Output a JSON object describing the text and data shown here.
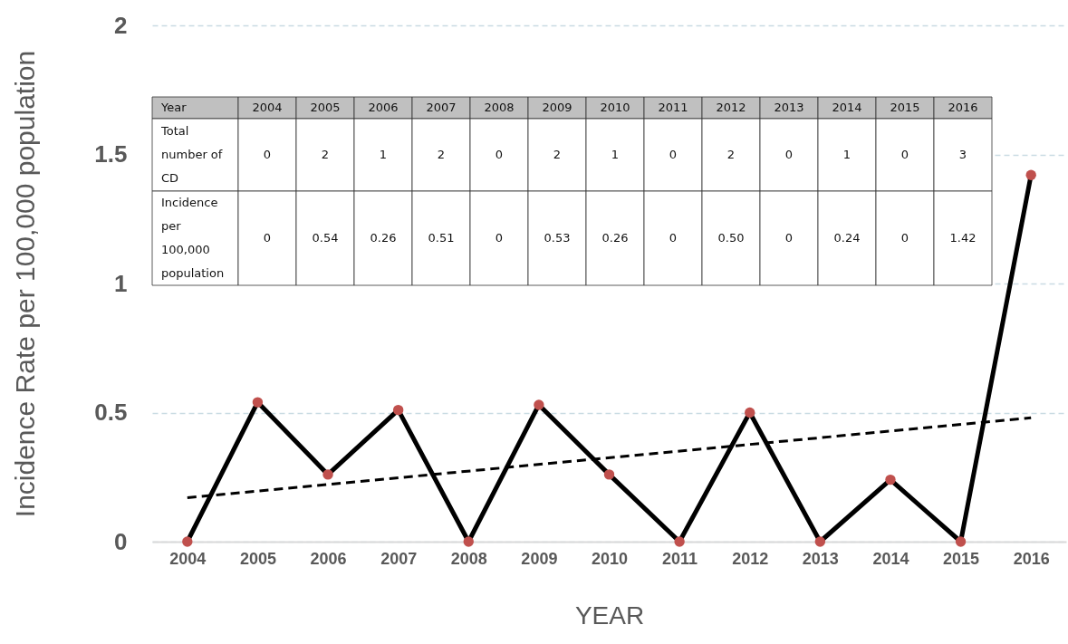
{
  "chart_data": {
    "type": "line",
    "x": [
      2004,
      2005,
      2006,
      2007,
      2008,
      2009,
      2010,
      2011,
      2012,
      2013,
      2014,
      2015,
      2016
    ],
    "xlim": [
      2003.5,
      2016.5
    ],
    "xticks": [
      2004,
      2005,
      2006,
      2007,
      2008,
      2009,
      2010,
      2011,
      2012,
      2013,
      2014,
      2015,
      2016
    ],
    "ylim": [
      0,
      2
    ],
    "yticks": [
      0,
      0.5,
      1,
      1.5,
      2
    ],
    "xlabel": "YEAR",
    "ylabel": "Incidence Rate per 100,000 population",
    "grid": "y",
    "annotations": [
      "Year",
      "2004",
      "2005",
      "2006",
      "2007",
      "2008",
      "2009",
      "2010",
      "2011",
      "2012",
      "2013",
      "2014",
      "2015",
      "2016",
      "Total number of CD",
      "0",
      "2",
      "1",
      "2",
      "0",
      "2",
      "1",
      "0",
      "2",
      "0",
      "1",
      "0",
      "3",
      "Incidence per 100,000 population",
      "0",
      "0.54",
      "0.26",
      "0.51",
      "0",
      "0.53",
      "0.26",
      "0",
      "0.50",
      "0",
      "0.24",
      "0",
      "1.42"
    ],
    "series": [
      {
        "color": "#000000",
        "marker": "circle",
        "line_style": "solid",
        "colors": [
          "#c0504d",
          "#c0504d",
          "#c0504d",
          "#c0504d",
          "#c0504d",
          "#c0504d",
          "#c0504d",
          "#c0504d",
          "#c0504d",
          "#c0504d",
          "#c0504d",
          "#c0504d",
          "#c0504d"
        ],
        "values": [
          0,
          0.54,
          0.26,
          0.51,
          0,
          0.53,
          0.26,
          0,
          0.5,
          0,
          0.24,
          0,
          1.42
        ]
      },
      {
        "type": "line",
        "color": "#000000",
        "marker": "none",
        "line_style": "dashed",
        "x": [
          2004,
          2016
        ],
        "values": [
          0.17,
          0.48
        ]
      }
    ]
  }
}
